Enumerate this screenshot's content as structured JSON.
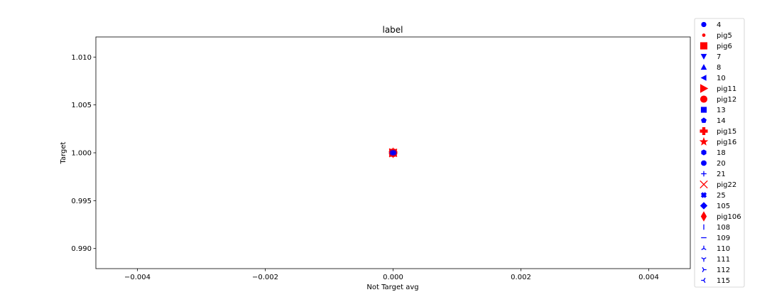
{
  "chart_data": {
    "type": "scatter",
    "title": "label",
    "xlabel": "Not Target avg",
    "ylabel": "Target",
    "xlim": [
      -0.00465,
      0.00465
    ],
    "ylim": [
      0.9879,
      1.0121
    ],
    "xticks": [
      -0.004,
      -0.002,
      0.0,
      0.002,
      0.004
    ],
    "xtick_labels": [
      "−0.004",
      "−0.002",
      "0.000",
      "0.002",
      "0.004"
    ],
    "yticks": [
      0.99,
      0.995,
      1.0,
      1.005,
      1.01
    ],
    "ytick_labels": [
      "0.990",
      "0.995",
      "1.000",
      "1.005",
      "1.010"
    ],
    "grid": false,
    "legend_position": "outside-right",
    "colors": {
      "blue": "#0000ff",
      "red": "#ff0000"
    },
    "series": [
      {
        "name": "4",
        "color": "blue",
        "marker": "circle",
        "x": [
          0.0
        ],
        "y": [
          1.0
        ]
      },
      {
        "name": "pig5",
        "color": "red",
        "marker": "point",
        "x": [
          0.0
        ],
        "y": [
          1.0
        ]
      },
      {
        "name": "pig6",
        "color": "red",
        "marker": "square-large",
        "x": [
          0.0
        ],
        "y": [
          1.0
        ]
      },
      {
        "name": "7",
        "color": "blue",
        "marker": "triangle-down",
        "x": [
          0.0
        ],
        "y": [
          1.0
        ]
      },
      {
        "name": "8",
        "color": "blue",
        "marker": "triangle-up",
        "x": [
          0.0
        ],
        "y": [
          1.0
        ]
      },
      {
        "name": "10",
        "color": "blue",
        "marker": "triangle-left",
        "x": [
          0.0
        ],
        "y": [
          1.0
        ]
      },
      {
        "name": "pig11",
        "color": "red",
        "marker": "triangle-right",
        "x": [
          0.0
        ],
        "y": [
          1.0
        ]
      },
      {
        "name": "pig12",
        "color": "red",
        "marker": "circle-large",
        "x": [
          0.0
        ],
        "y": [
          1.0
        ]
      },
      {
        "name": "13",
        "color": "blue",
        "marker": "square",
        "x": [
          0.0
        ],
        "y": [
          1.0
        ]
      },
      {
        "name": "14",
        "color": "blue",
        "marker": "pentagon",
        "x": [
          0.0
        ],
        "y": [
          1.0
        ]
      },
      {
        "name": "pig15",
        "color": "red",
        "marker": "plus-filled",
        "x": [
          0.0
        ],
        "y": [
          1.0
        ]
      },
      {
        "name": "pig16",
        "color": "red",
        "marker": "star",
        "x": [
          0.0
        ],
        "y": [
          1.0
        ]
      },
      {
        "name": "18",
        "color": "blue",
        "marker": "hexagon1",
        "x": [
          0.0
        ],
        "y": [
          1.0
        ]
      },
      {
        "name": "20",
        "color": "blue",
        "marker": "octagon",
        "x": [
          0.0
        ],
        "y": [
          1.0
        ]
      },
      {
        "name": "21",
        "color": "blue",
        "marker": "plus",
        "x": [
          0.0
        ],
        "y": [
          1.0
        ]
      },
      {
        "name": "pig22",
        "color": "red",
        "marker": "x",
        "x": [
          0.0
        ],
        "y": [
          1.0
        ]
      },
      {
        "name": "25",
        "color": "blue",
        "marker": "x-filled",
        "x": [
          0.0
        ],
        "y": [
          1.0
        ]
      },
      {
        "name": "105",
        "color": "blue",
        "marker": "diamond",
        "x": [
          0.0
        ],
        "y": [
          1.0
        ]
      },
      {
        "name": "pig106",
        "color": "red",
        "marker": "thin-diamond",
        "x": [
          0.0
        ],
        "y": [
          1.0
        ]
      },
      {
        "name": "108",
        "color": "blue",
        "marker": "vline",
        "x": [
          0.0
        ],
        "y": [
          1.0
        ]
      },
      {
        "name": "109",
        "color": "blue",
        "marker": "hline",
        "x": [
          0.0
        ],
        "y": [
          1.0
        ]
      },
      {
        "name": "110",
        "color": "blue",
        "marker": "tri-down",
        "x": [
          0.0
        ],
        "y": [
          1.0
        ]
      },
      {
        "name": "111",
        "color": "blue",
        "marker": "tri-up",
        "x": [
          0.0
        ],
        "y": [
          1.0
        ]
      },
      {
        "name": "112",
        "color": "blue",
        "marker": "tri-left",
        "x": [
          0.0
        ],
        "y": [
          1.0
        ]
      },
      {
        "name": "115",
        "color": "blue",
        "marker": "tri-right",
        "x": [
          0.0
        ],
        "y": [
          1.0
        ]
      }
    ]
  }
}
